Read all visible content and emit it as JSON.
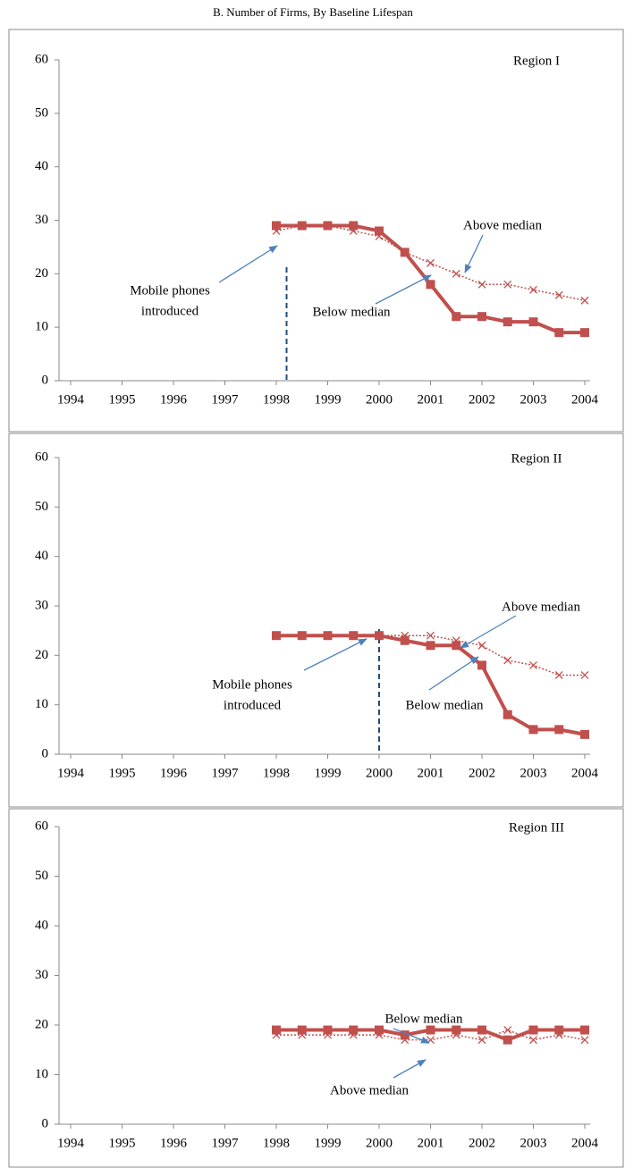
{
  "title": "B. Number of Firms, By Baseline Lifespan",
  "chart_data": [
    {
      "type": "line",
      "title": "Region I",
      "x": [
        1998,
        1998.5,
        1999,
        1999.5,
        2000,
        2000.5,
        2001,
        2001.5,
        2002,
        2002.5,
        2003,
        2003.5,
        2004
      ],
      "xlim": [
        1994,
        2004
      ],
      "xticks": [
        1994,
        1995,
        1996,
        1997,
        1998,
        1999,
        2000,
        2001,
        2002,
        2003,
        2004
      ],
      "ylim": [
        0,
        60
      ],
      "yticks": [
        0,
        10,
        20,
        30,
        40,
        50,
        60
      ],
      "series": [
        {
          "name": "Below median",
          "color": "#c0504d",
          "marker": "square",
          "values": [
            29,
            29,
            29,
            29,
            28,
            24,
            18,
            12,
            12,
            11,
            11,
            9,
            9
          ]
        },
        {
          "name": "Above median",
          "color": "#c0504d",
          "marker": "x",
          "line_style": "dotted",
          "values": [
            28,
            29,
            29,
            28,
            27,
            24,
            22,
            20,
            18,
            18,
            17,
            16,
            15
          ]
        }
      ],
      "event": {
        "lines": [
          "Mobile phones",
          "introduced"
        ],
        "x": 1998.2
      }
    },
    {
      "type": "line",
      "title": "Region II",
      "x": [
        1998,
        1998.5,
        1999,
        1999.5,
        2000,
        2000.5,
        2001,
        2001.5,
        2002,
        2002.5,
        2003,
        2003.5,
        2004
      ],
      "xlim": [
        1994,
        2004
      ],
      "xticks": [
        1994,
        1995,
        1996,
        1997,
        1998,
        1999,
        2000,
        2001,
        2002,
        2003,
        2004
      ],
      "ylim": [
        0,
        60
      ],
      "yticks": [
        0,
        10,
        20,
        30,
        40,
        50,
        60
      ],
      "series": [
        {
          "name": "Below median",
          "color": "#c0504d",
          "marker": "square",
          "values": [
            24,
            24,
            24,
            24,
            24,
            23,
            22,
            22,
            18,
            8,
            5,
            5,
            4
          ]
        },
        {
          "name": "Above median",
          "color": "#c0504d",
          "marker": "x",
          "line_style": "dotted",
          "values": [
            24,
            24,
            24,
            24,
            24,
            24,
            24,
            23,
            22,
            19,
            18,
            16,
            16
          ]
        }
      ],
      "event": {
        "lines": [
          "Mobile phones",
          "introduced"
        ],
        "x": 2000
      }
    },
    {
      "type": "line",
      "title": "Region III",
      "x": [
        1998,
        1998.5,
        1999,
        1999.5,
        2000,
        2000.5,
        2001,
        2001.5,
        2002,
        2002.5,
        2003,
        2003.5,
        2004
      ],
      "xlim": [
        1994,
        2004
      ],
      "xticks": [
        1994,
        1995,
        1996,
        1997,
        1998,
        1999,
        2000,
        2001,
        2002,
        2003,
        2004
      ],
      "ylim": [
        0,
        60
      ],
      "yticks": [
        0,
        10,
        20,
        30,
        40,
        50,
        60
      ],
      "series": [
        {
          "name": "Below median",
          "color": "#c0504d",
          "marker": "square",
          "values": [
            19,
            19,
            19,
            19,
            19,
            18,
            19,
            19,
            19,
            17,
            19,
            19,
            19
          ]
        },
        {
          "name": "Above median",
          "color": "#c0504d",
          "marker": "x",
          "line_style": "dotted",
          "values": [
            18,
            18,
            18,
            18,
            18,
            17,
            17,
            18,
            17,
            19,
            17,
            18,
            17
          ]
        }
      ]
    }
  ]
}
